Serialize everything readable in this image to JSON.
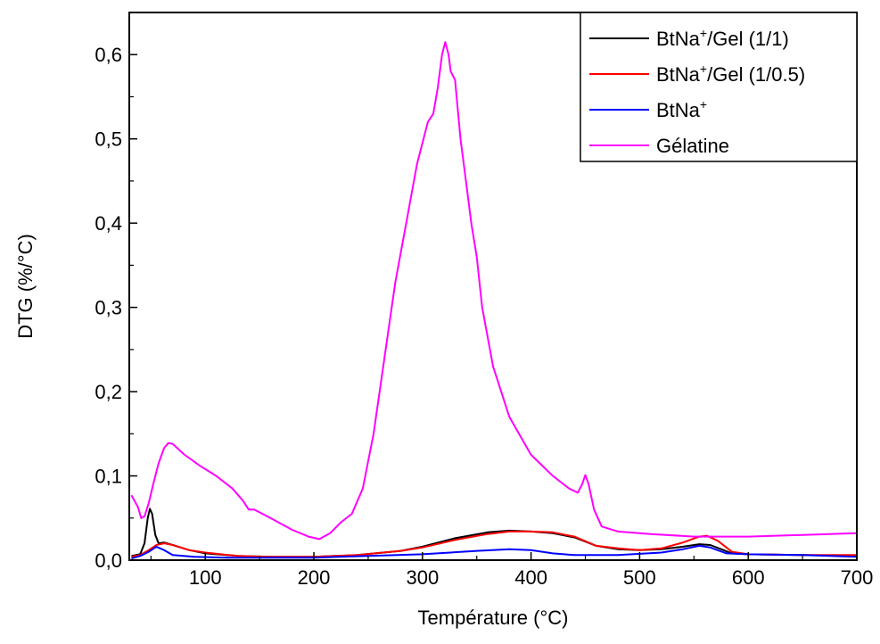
{
  "chart_data": {
    "type": "line",
    "title": "",
    "xlabel": "Température (°C)",
    "ylabel": "DTG (%/°C)",
    "xlim": [
      30,
      700
    ],
    "ylim": [
      0,
      0.65
    ],
    "x_ticks": [
      100,
      200,
      300,
      400,
      500,
      600,
      700
    ],
    "x_tick_labels": [
      "100",
      "200",
      "300",
      "400",
      "500",
      "600",
      "700"
    ],
    "y_ticks": [
      0,
      0.1,
      0.2,
      0.3,
      0.4,
      0.5,
      0.6
    ],
    "y_tick_labels": [
      "0,0",
      "0,1",
      "0,2",
      "0,3",
      "0,4",
      "0,5",
      "0,6"
    ],
    "grid": false,
    "legend_position": "top-right",
    "series": [
      {
        "name_base": "BtNa",
        "name_sup": "+",
        "name_rest": "/Gel (1/1)",
        "color": "#000000",
        "points": [
          [
            32,
            0.005
          ],
          [
            40,
            0.007
          ],
          [
            44,
            0.02
          ],
          [
            47,
            0.05
          ],
          [
            49,
            0.061
          ],
          [
            51,
            0.055
          ],
          [
            54,
            0.03
          ],
          [
            57,
            0.02
          ],
          [
            62,
            0.021
          ],
          [
            70,
            0.018
          ],
          [
            85,
            0.012
          ],
          [
            100,
            0.008
          ],
          [
            130,
            0.005
          ],
          [
            160,
            0.004
          ],
          [
            200,
            0.004
          ],
          [
            240,
            0.006
          ],
          [
            280,
            0.011
          ],
          [
            300,
            0.016
          ],
          [
            330,
            0.026
          ],
          [
            360,
            0.033
          ],
          [
            380,
            0.035
          ],
          [
            400,
            0.034
          ],
          [
            420,
            0.032
          ],
          [
            440,
            0.027
          ],
          [
            460,
            0.017
          ],
          [
            480,
            0.013
          ],
          [
            500,
            0.012
          ],
          [
            520,
            0.013
          ],
          [
            540,
            0.016
          ],
          [
            555,
            0.019
          ],
          [
            565,
            0.018
          ],
          [
            575,
            0.013
          ],
          [
            585,
            0.008
          ],
          [
            600,
            0.007
          ],
          [
            650,
            0.006
          ],
          [
            700,
            0.005
          ]
        ]
      },
      {
        "name_base": "BtNa",
        "name_sup": "+",
        "name_rest": "/Gel (1/0.5)",
        "color": "#ff0000",
        "points": [
          [
            32,
            0.004
          ],
          [
            40,
            0.006
          ],
          [
            48,
            0.012
          ],
          [
            55,
            0.018
          ],
          [
            62,
            0.02
          ],
          [
            70,
            0.018
          ],
          [
            85,
            0.012
          ],
          [
            100,
            0.009
          ],
          [
            130,
            0.005
          ],
          [
            160,
            0.004
          ],
          [
            200,
            0.004
          ],
          [
            240,
            0.006
          ],
          [
            280,
            0.011
          ],
          [
            300,
            0.015
          ],
          [
            330,
            0.024
          ],
          [
            360,
            0.031
          ],
          [
            380,
            0.034
          ],
          [
            400,
            0.034
          ],
          [
            420,
            0.033
          ],
          [
            440,
            0.028
          ],
          [
            460,
            0.017
          ],
          [
            480,
            0.014
          ],
          [
            500,
            0.012
          ],
          [
            520,
            0.014
          ],
          [
            540,
            0.021
          ],
          [
            555,
            0.028
          ],
          [
            562,
            0.029
          ],
          [
            572,
            0.023
          ],
          [
            585,
            0.01
          ],
          [
            600,
            0.007
          ],
          [
            650,
            0.006
          ],
          [
            700,
            0.006
          ]
        ]
      },
      {
        "name_base": "BtNa",
        "name_sup": "+",
        "name_rest": "",
        "color": "#0000ff",
        "points": [
          [
            32,
            0.002
          ],
          [
            40,
            0.005
          ],
          [
            48,
            0.01
          ],
          [
            55,
            0.016
          ],
          [
            62,
            0.012
          ],
          [
            70,
            0.006
          ],
          [
            90,
            0.004
          ],
          [
            120,
            0.003
          ],
          [
            200,
            0.003
          ],
          [
            300,
            0.007
          ],
          [
            350,
            0.011
          ],
          [
            380,
            0.013
          ],
          [
            400,
            0.012
          ],
          [
            420,
            0.008
          ],
          [
            440,
            0.006
          ],
          [
            480,
            0.006
          ],
          [
            520,
            0.009
          ],
          [
            540,
            0.013
          ],
          [
            555,
            0.017
          ],
          [
            565,
            0.015
          ],
          [
            580,
            0.008
          ],
          [
            600,
            0.007
          ],
          [
            650,
            0.006
          ],
          [
            700,
            0.004
          ]
        ]
      },
      {
        "name_base": "Gélatine",
        "name_sup": "",
        "name_rest": "",
        "color": "#ff00ff",
        "points": [
          [
            32,
            0.077
          ],
          [
            35,
            0.07
          ],
          [
            38,
            0.063
          ],
          [
            41,
            0.05
          ],
          [
            44,
            0.052
          ],
          [
            48,
            0.068
          ],
          [
            52,
            0.09
          ],
          [
            57,
            0.115
          ],
          [
            62,
            0.133
          ],
          [
            66,
            0.139
          ],
          [
            70,
            0.138
          ],
          [
            80,
            0.126
          ],
          [
            95,
            0.112
          ],
          [
            110,
            0.1
          ],
          [
            125,
            0.085
          ],
          [
            135,
            0.07
          ],
          [
            140,
            0.06
          ],
          [
            145,
            0.06
          ],
          [
            160,
            0.05
          ],
          [
            180,
            0.036
          ],
          [
            195,
            0.028
          ],
          [
            205,
            0.025
          ],
          [
            215,
            0.032
          ],
          [
            225,
            0.045
          ],
          [
            235,
            0.055
          ],
          [
            245,
            0.085
          ],
          [
            255,
            0.15
          ],
          [
            265,
            0.24
          ],
          [
            275,
            0.33
          ],
          [
            285,
            0.4
          ],
          [
            295,
            0.47
          ],
          [
            305,
            0.52
          ],
          [
            310,
            0.53
          ],
          [
            314,
            0.56
          ],
          [
            318,
            0.6
          ],
          [
            321,
            0.615
          ],
          [
            324,
            0.6
          ],
          [
            326,
            0.58
          ],
          [
            330,
            0.57
          ],
          [
            335,
            0.5
          ],
          [
            340,
            0.45
          ],
          [
            345,
            0.4
          ],
          [
            350,
            0.36
          ],
          [
            355,
            0.3
          ],
          [
            365,
            0.23
          ],
          [
            380,
            0.17
          ],
          [
            400,
            0.125
          ],
          [
            420,
            0.1
          ],
          [
            435,
            0.085
          ],
          [
            443,
            0.08
          ],
          [
            447,
            0.09
          ],
          [
            450,
            0.101
          ],
          [
            453,
            0.09
          ],
          [
            458,
            0.06
          ],
          [
            465,
            0.04
          ],
          [
            480,
            0.034
          ],
          [
            510,
            0.031
          ],
          [
            550,
            0.028
          ],
          [
            600,
            0.028
          ],
          [
            650,
            0.03
          ],
          [
            700,
            0.032
          ]
        ]
      }
    ]
  }
}
